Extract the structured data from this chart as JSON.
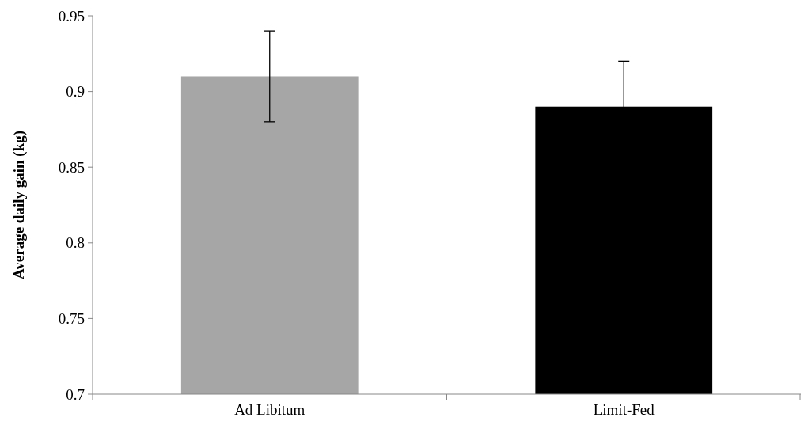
{
  "chart_data": {
    "type": "bar",
    "ylabel": "Average daily gain (kg)",
    "categories": [
      "Ad Libitum",
      "Limit-Fed"
    ],
    "values": [
      0.91,
      0.89
    ],
    "colors": [
      "#a6a6a6",
      "#000000"
    ],
    "errors": [
      0.03,
      0.03
    ],
    "ylim": [
      0.7,
      0.95
    ],
    "yticks": [
      0.7,
      0.75,
      0.8,
      0.85,
      0.9,
      0.95
    ]
  }
}
